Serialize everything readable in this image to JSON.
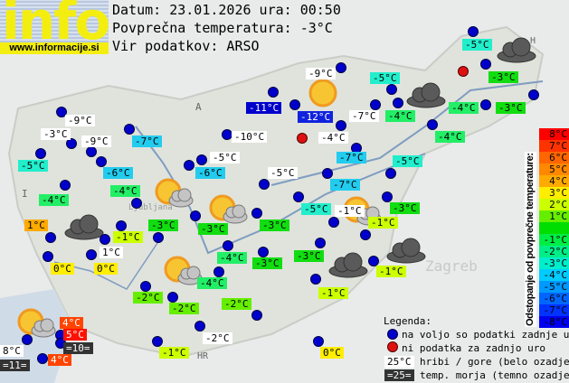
{
  "header": {
    "logo": "info",
    "site": "www.informacije.si",
    "date_line": "Datum: 23.01.2026 ura: 00:50",
    "avg_line": "Povprečna temperatura: -3°C",
    "source_line": "Vir podatkov: ARSO"
  },
  "colors": {
    "white": "#ffffff",
    "dark": "#333333",
    "station_dot": "#0000cc",
    "no_data_dot": "#dd1111"
  },
  "map_labels": [
    "A",
    "I",
    "HR",
    "H",
    "Ljubljana",
    "Zagreb"
  ],
  "stations": [
    {
      "t": "-9°C",
      "c": "#ffffff"
    },
    {
      "t": "-3°C",
      "c": "#ffffff"
    },
    {
      "t": "-9°C",
      "c": "#ffffff"
    },
    {
      "t": "-7°C",
      "c": "#22ccee"
    },
    {
      "t": "-5°C",
      "c": "#22eecc"
    },
    {
      "t": "-6°C",
      "c": "#22ccee"
    },
    {
      "t": "-4°C",
      "c": "#22ee66"
    },
    {
      "t": "-4°C",
      "c": "#22ee66"
    },
    {
      "t": "-11°C",
      "c": "#0000cc",
      "fg": "#ffffff"
    },
    {
      "t": "-10°C",
      "c": "#ffffff"
    },
    {
      "t": "-5°C",
      "c": "#ffffff"
    },
    {
      "t": "-6°C",
      "c": "#22ccee"
    },
    {
      "t": "-5°C",
      "c": "#ffffff"
    },
    {
      "t": "-9°C",
      "c": "#ffffff"
    },
    {
      "t": "-12°C",
      "c": "#1122dd",
      "fg": "#ffffff"
    },
    {
      "t": "-7°C",
      "c": "#ffffff"
    },
    {
      "t": "-4°C",
      "c": "#ffffff"
    },
    {
      "t": "-5°C",
      "c": "#22eecc"
    },
    {
      "t": "-4°C",
      "c": "#22ee66"
    },
    {
      "t": "-5°C",
      "c": "#22eecc"
    },
    {
      "t": "-3°C",
      "c": "#11dd11"
    },
    {
      "t": "-4°C",
      "c": "#22ee66"
    },
    {
      "t": "-3°C",
      "c": "#11dd11"
    },
    {
      "t": "-4°C",
      "c": "#22ee66"
    },
    {
      "t": "-7°C",
      "c": "#22ccee"
    },
    {
      "t": "-5°C",
      "c": "#22eecc"
    },
    {
      "t": "-7°C",
      "c": "#22ccee"
    },
    {
      "t": "-5°C",
      "c": "#22eecc"
    },
    {
      "t": "-1°C",
      "c": "#ffffff"
    },
    {
      "t": "-3°C",
      "c": "#11dd11"
    },
    {
      "t": "-1°C",
      "c": "#ccff00"
    },
    {
      "t": "1°C",
      "c": "#ffaa00"
    },
    {
      "t": "-3°C",
      "c": "#11dd11"
    },
    {
      "t": "-3°C",
      "c": "#11dd11"
    },
    {
      "t": "-3°C",
      "c": "#11dd11"
    },
    {
      "t": "-1°C",
      "c": "#ccff00"
    },
    {
      "t": "1°C",
      "c": "#ffffff"
    },
    {
      "t": "0°C",
      "c": "#ffee00"
    },
    {
      "t": "0°C",
      "c": "#ffee00"
    },
    {
      "t": "-4°C",
      "c": "#22ee66"
    },
    {
      "t": "-3°C",
      "c": "#11dd11"
    },
    {
      "t": "-3°C",
      "c": "#11dd11"
    },
    {
      "t": "-1°C",
      "c": "#ccff00"
    },
    {
      "t": "-1°C",
      "c": "#ccff00"
    },
    {
      "t": "-4°C",
      "c": "#22ee66"
    },
    {
      "t": "-2°C",
      "c": "#66ee00"
    },
    {
      "t": "-2°C",
      "c": "#66ee00"
    },
    {
      "t": "-2°C",
      "c": "#66ee00"
    },
    {
      "t": "4°C",
      "c": "#ff4400",
      "fg": "#ffffff"
    },
    {
      "t": "5°C",
      "c": "#ff1100",
      "fg": "#ffffff"
    },
    {
      "t": "=10=",
      "c": "#333333",
      "fg": "#ffffff"
    },
    {
      "t": "8°C",
      "c": "#ffffff"
    },
    {
      "t": "=11=",
      "c": "#333333",
      "fg": "#ffffff"
    },
    {
      "t": "4°C",
      "c": "#ff4400",
      "fg": "#ffffff"
    },
    {
      "t": "-2°C",
      "c": "#ffffff"
    },
    {
      "t": "-1°C",
      "c": "#ccff00"
    },
    {
      "t": "0°C",
      "c": "#ffee00"
    }
  ],
  "weather_icons": [
    "sun",
    "sun-cloud",
    "sun-cloud",
    "sun-cloud",
    "sun-cloud",
    "sun-cloud",
    "dark-cloud",
    "dark-cloud",
    "dark-cloud",
    "dark-cloud",
    "dark-cloud"
  ],
  "scale": {
    "title": "Odstopanje od povprečne temperature:",
    "cells": [
      {
        "t": "8°C",
        "c": "#ff0000"
      },
      {
        "t": "7°C",
        "c": "#ff3300"
      },
      {
        "t": "6°C",
        "c": "#ff6600"
      },
      {
        "t": "5°C",
        "c": "#ff8800"
      },
      {
        "t": "4°C",
        "c": "#ffaa00"
      },
      {
        "t": "3°C",
        "c": "#ffee00"
      },
      {
        "t": "2°C",
        "c": "#ccff00"
      },
      {
        "t": "1°C",
        "c": "#66ee00"
      },
      {
        "t": "",
        "c": "#00dd00"
      },
      {
        "t": "-1°C",
        "c": "#00ee44"
      },
      {
        "t": "-2°C",
        "c": "#00ee88"
      },
      {
        "t": "-3°C",
        "c": "#00eecc"
      },
      {
        "t": "-4°C",
        "c": "#00ccff"
      },
      {
        "t": "-5°C",
        "c": "#0099ff"
      },
      {
        "t": "-6°C",
        "c": "#0066ff"
      },
      {
        "t": "-7°C",
        "c": "#0033ff"
      },
      {
        "t": "-8°C",
        "c": "#0000ee"
      }
    ]
  },
  "legend": {
    "title": "Legenda:",
    "blue_dot": "na voljo so podatki zadnje ure",
    "red_dot": "ni podatka za zadnjo uro",
    "white_sample": "25°C",
    "white_text": "hribi / gore (belo ozadje)",
    "dark_sample": "=25=",
    "dark_text": "temp. morja (temno ozadje)"
  }
}
